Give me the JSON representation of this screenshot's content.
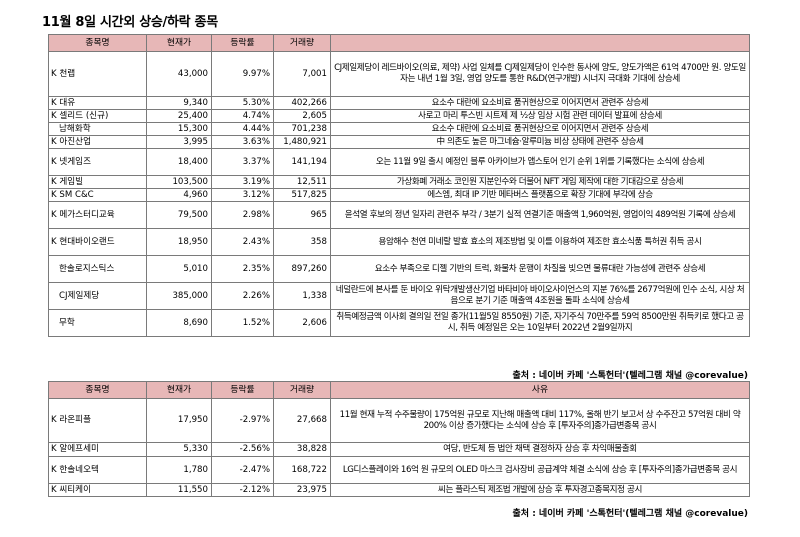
{
  "title": "11월 8일 시간외 상승/하락 종목",
  "headers": [
    "종목명",
    "현재가",
    "등락률",
    "거래량",
    "사유"
  ],
  "rising": [
    {
      "name": "K 천랩",
      "price": "43,000",
      "rate": "9.97%",
      "volume": "7,001",
      "reason": "CJ제일제당이 레드바이오(의료, 제약) 사업 일체를 CJ제일제당이 인수한 동사에 양도, 양도가액은 61억 4700만 원. 양도일자는 내년 1월 3일, 영업 양도를 통한 R&D(연구개발) 시너지 극대화 기대에 상승세"
    },
    {
      "name": "K 대유",
      "price": "9,340",
      "rate": "5.30%",
      "volume": "402,266",
      "reason": "요소수 대란에 요소비료 품귀현상으로 이어지면서 관련주 상승세"
    },
    {
      "name": "K 셀리드 (신규)",
      "price": "25,400",
      "rate": "4.74%",
      "volume": "2,605",
      "reason": "사로고 마리 투스빈 시트제 제 ½상 임상 시험 관련 데이터 발표에 상승세"
    },
    {
      "name": "남해화학",
      "price": "15,300",
      "rate": "4.44%",
      "volume": "701,238",
      "reason": "요소수 대란에 요소비료 품귀현상으로 이어지면서 관련주 상승세"
    },
    {
      "name": "K 아진산업",
      "price": "3,995",
      "rate": "3.63%",
      "volume": "1,480,921",
      "reason": "中 의존도 높은 마그네슘·알루미늄 비상 상태에 관련주 상승세"
    },
    {
      "name": "K 넷게임즈",
      "price": "18,400",
      "rate": "3.37%",
      "volume": "141,194",
      "reason": "오는 11월 9일 출시 예정인 블루 아카이브가 앱스토어 인기 순위 1위를 기록했다는 소식에 상승세"
    },
    {
      "name": "K 게임빌",
      "price": "103,500",
      "rate": "3.19%",
      "volume": "12,511",
      "reason": "가상화폐 거래소 코인원 지분인수와 더불어 NFT 게임 제작에 대한 기대감으로 상승세"
    },
    {
      "name": "K SM C&C",
      "price": "4,960",
      "rate": "3.12%",
      "volume": "517,825",
      "reason": "에스엠, 최대 IP 기반 메타버스 플랫폼으로 확장 기대에 부각에 상승"
    },
    {
      "name": "K 메가스터디교육",
      "price": "79,500",
      "rate": "2.98%",
      "volume": "965",
      "reason": "윤석열 후보의 정년 일자리 관련주 부각 / 3분기 실적 연결기준 매출액 1,960억원, 영업이익 489억원 기록에 상승세"
    },
    {
      "name": "K 현대바이오랜드",
      "price": "18,950",
      "rate": "2.43%",
      "volume": "358",
      "reason": "용암해수 천연 미네랄 발효 효소의 제조방법 및 이를 이용하여 제조한 효소식품 특허권 취득 공시"
    },
    {
      "name": "한솔로지스틱스",
      "price": "5,010",
      "rate": "2.35%",
      "volume": "897,260",
      "reason": "요소수 부족으로 디젤 기반의 트럭, 화물차 운행이 차질을 빚으면 물류대란 가능성에 관련주 상승세"
    },
    {
      "name": "CJ제일제당",
      "price": "385,000",
      "rate": "2.26%",
      "volume": "1,338",
      "reason": "네덜란드에 본사를 둔 바이오 위탁개발생산기업 바타비아 바이오사이언스의 지분 76%를 2677억원에 인수 소식, 시상 처음으로 분기 기준 매출액 4조원을 돌파 소식에 상승세"
    },
    {
      "name": "무학",
      "price": "8,690",
      "rate": "1.52%",
      "volume": "2,606",
      "reason": "취득예정금액 이사회 결의일 전일 종가(11월5일 8550원) 기준, 자기주식 70만주를 59억 8500만원 취득키로 했다고 공시, 취득 예정일은 오는 10일부터 2022년 2월9일까지"
    }
  ],
  "source_label": "출처 : 네이버 카페 '스톡헌터'(텔레그램 채널 @corevalue)",
  "falling": [
    {
      "name": "K 라온피플",
      "price": "17,950",
      "rate": "-2.97%",
      "volume": "27,668",
      "reason": "11월 현재 누적 수주물량이 175억원 규모로 지난해 매출액 대비 117%, 올해 반기 보고서 상 수주잔고 57억원 대비 약 200% 이상 증가했다는 소식에 상승 후 [투자주의]종가급변종목 공시"
    },
    {
      "name": "K 알에프세미",
      "price": "5,330",
      "rate": "-2.56%",
      "volume": "38,828",
      "reason": "여당, 반도체 등 법안 채택 결정하자 상승 후 차익매물출회"
    },
    {
      "name": "K 한솔네오텍",
      "price": "1,780",
      "rate": "-2.47%",
      "volume": "168,722",
      "reason": "LG디스플레이와 16억 원 규모의 OLED 마스크 검사장비 공급계약 체결 소식에 상승 후 [투자주의]종가급변종목 공시"
    },
    {
      "name": "K 씨티케이",
      "price": "11,550",
      "rate": "-2.12%",
      "volume": "23,975",
      "reason": "씨는 플라스틱 제조법 개발에 상승 후 투자경고종목지정 공시"
    }
  ]
}
